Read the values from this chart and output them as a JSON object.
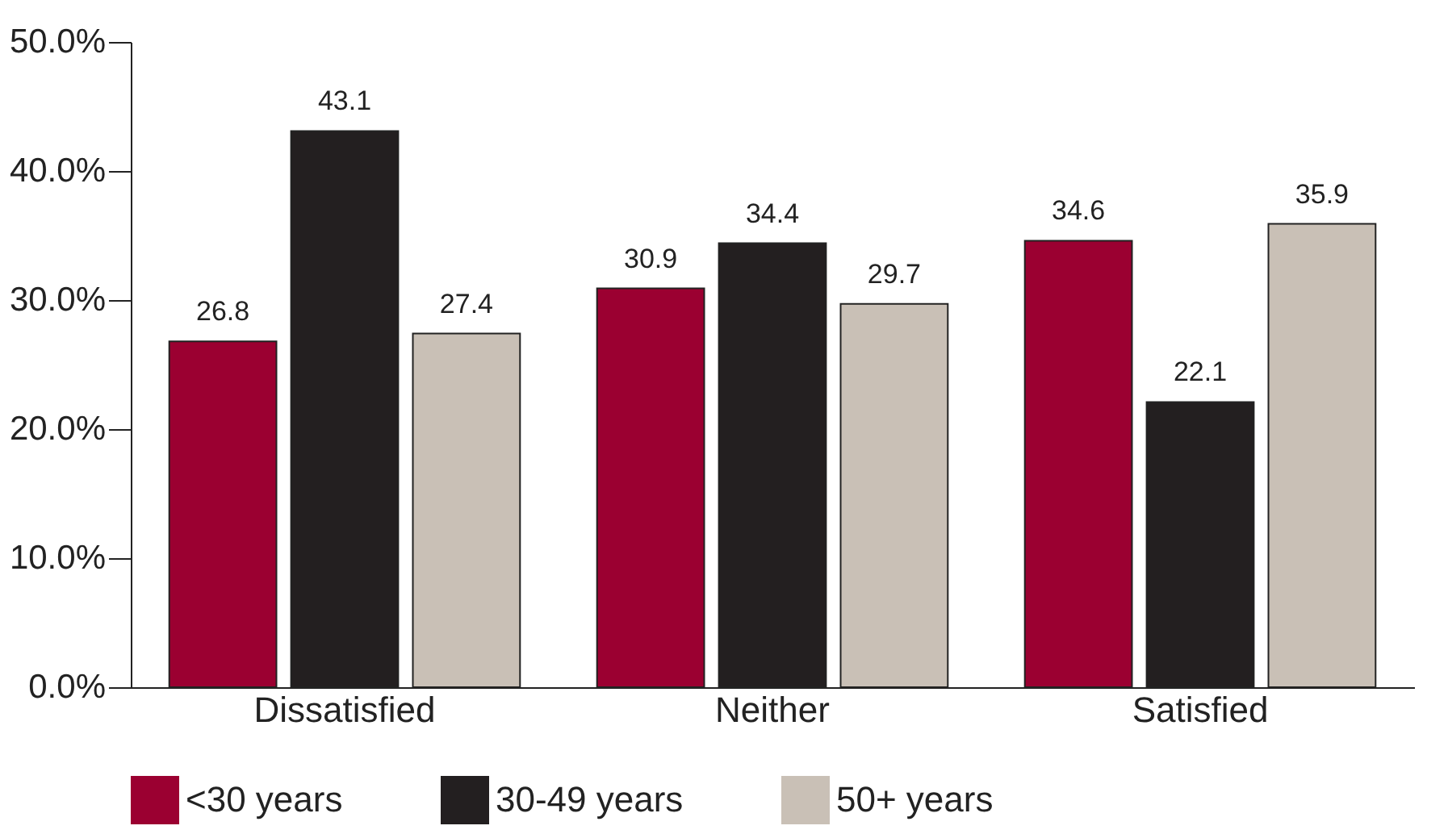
{
  "chart_data": {
    "type": "bar",
    "categories": [
      "Dissatisfied",
      "Neither",
      "Satisfied"
    ],
    "series": [
      {
        "name": "<30 years",
        "color": "#9b0031",
        "values": [
          26.8,
          30.9,
          34.6
        ]
      },
      {
        "name": "30-49 years",
        "color": "#231f20",
        "values": [
          43.1,
          34.4,
          22.1
        ]
      },
      {
        "name": "50+ years",
        "color": "#c9c0b6",
        "values": [
          27.4,
          29.7,
          35.9
        ]
      }
    ],
    "ylim": [
      0,
      50
    ],
    "yticks": [
      {
        "value": 0,
        "label": "0.0%"
      },
      {
        "value": 10,
        "label": "10.0%"
      },
      {
        "value": 20,
        "label": "20.0%"
      },
      {
        "value": 30,
        "label": "30.0%"
      },
      {
        "value": 40,
        "label": "40.0%"
      },
      {
        "value": 50,
        "label": "50.0%"
      }
    ],
    "data_labels": true,
    "grid": false,
    "legend": "bottom"
  }
}
